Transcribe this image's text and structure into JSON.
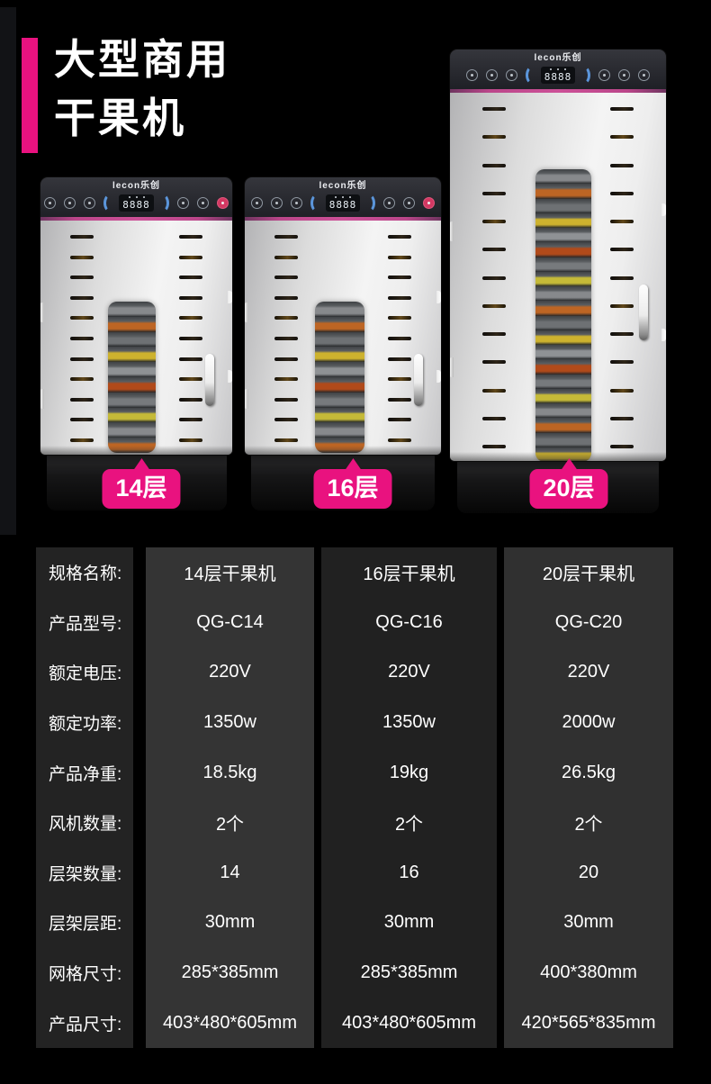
{
  "page": {
    "background": "#000000",
    "accent_pink": "#e9127f",
    "panel_stripe_pink": "#c2488c"
  },
  "header": {
    "title_line1": "大型商用",
    "title_line2": "干果机"
  },
  "machine_panel": {
    "brand_logo": "lecon乐创",
    "display_digits": "8888"
  },
  "products": [
    {
      "bubble_label": "14层",
      "layers": 14
    },
    {
      "bubble_label": "16层",
      "layers": 16
    },
    {
      "bubble_label": "20层",
      "layers": 20
    }
  ],
  "spec_table": {
    "rows": [
      {
        "label": "规格名称:",
        "values": [
          "14层干果机",
          "16层干果机",
          "20层干果机"
        ]
      },
      {
        "label": "产品型号:",
        "values": [
          "QG-C14",
          "QG-C16",
          "QG-C20"
        ]
      },
      {
        "label": "额定电压:",
        "values": [
          "220V",
          "220V",
          "220V"
        ]
      },
      {
        "label": "额定功率:",
        "values": [
          "1350w",
          "1350w",
          "2000w"
        ]
      },
      {
        "label": "产品净重:",
        "values": [
          "18.5kg",
          "19kg",
          "26.5kg"
        ]
      },
      {
        "label": "风机数量:",
        "values": [
          "2个",
          "2个",
          "2个"
        ]
      },
      {
        "label": "层架数量:",
        "values": [
          "14",
          "16",
          "20"
        ]
      },
      {
        "label": "层架层距:",
        "values": [
          "30mm",
          "30mm",
          "30mm"
        ]
      },
      {
        "label": "网格尺寸:",
        "values": [
          "285*385mm",
          "285*385mm",
          "400*380mm"
        ]
      },
      {
        "label": "产品尺寸:",
        "values": [
          "403*480*605mm",
          "403*480*605mm",
          "420*565*835mm"
        ]
      }
    ]
  }
}
